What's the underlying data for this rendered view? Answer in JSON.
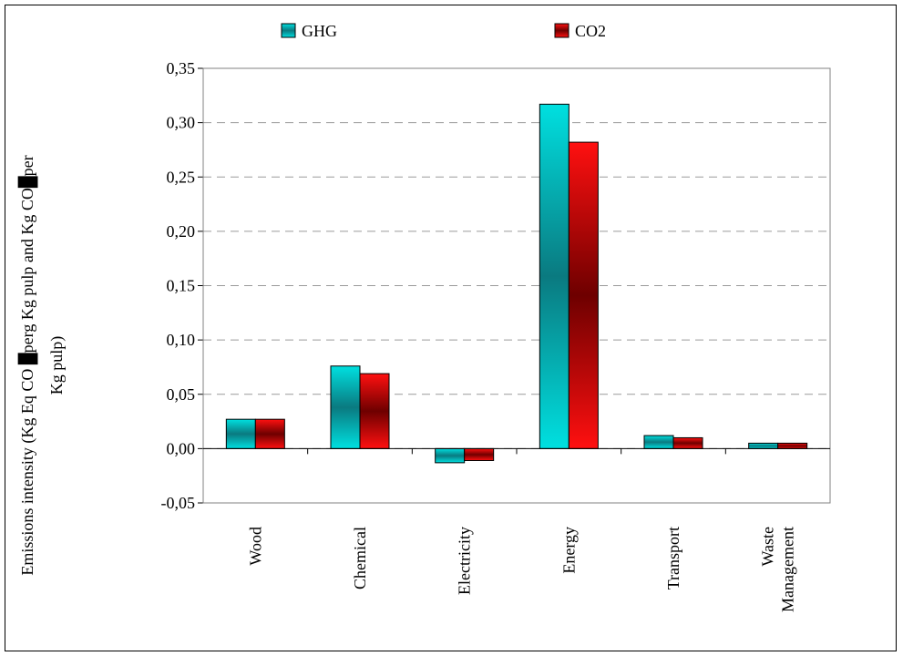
{
  "chart_data": {
    "type": "bar",
    "categories": [
      "Wood",
      "Chemical",
      "Electricity",
      "Energy",
      "Transport",
      "Waste Management"
    ],
    "category_lines": [
      [
        "Wood"
      ],
      [
        "Chemical"
      ],
      [
        "Electricity"
      ],
      [
        "Energy"
      ],
      [
        "Transport"
      ],
      [
        "Waste",
        "Management"
      ]
    ],
    "series": [
      {
        "name": "GHG",
        "values": [
          0.027,
          0.076,
          -0.013,
          0.317,
          0.012,
          0.005
        ],
        "color": "#00e0e0",
        "dark": "#0a7a80"
      },
      {
        "name": "CO2",
        "values": [
          0.027,
          0.069,
          -0.011,
          0.282,
          0.01,
          0.005
        ],
        "color": "#ff1010",
        "dark": "#6e0000"
      }
    ],
    "ylim": [
      -0.05,
      0.35
    ],
    "yticks": [
      "-0,05",
      "0,00",
      "0,05",
      "0,10",
      "0,15",
      "0,20",
      "0,25",
      "0,30",
      "0,35"
    ],
    "ylabel_lines": [
      "Emissions intensity (Kg Eq CO █perg Kg pulp and Kg CO█per",
      "Kg pulp)"
    ],
    "grid": true,
    "legend_position": "top"
  }
}
